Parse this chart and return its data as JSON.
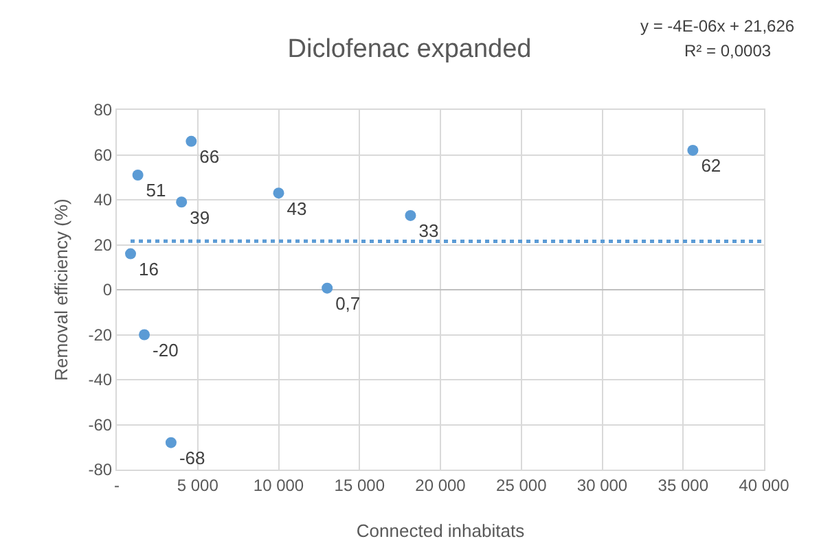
{
  "chart_data": {
    "type": "scatter",
    "title": "Diclofenac expanded",
    "xlabel": "Connected inhabitats",
    "ylabel": "Removal efficiency (%)",
    "annotations": [
      "y = -4E-06x + 21,626",
      "R² = 0,0003"
    ],
    "xlim": [
      0,
      40000
    ],
    "ylim": [
      -80,
      80
    ],
    "xticks": [
      {
        "value": 0,
        "label": "-"
      },
      {
        "value": 5000,
        "label": "5 000"
      },
      {
        "value": 10000,
        "label": "10 000"
      },
      {
        "value": 15000,
        "label": "15 000"
      },
      {
        "value": 20000,
        "label": "20 000"
      },
      {
        "value": 25000,
        "label": "25 000"
      },
      {
        "value": 30000,
        "label": "30 000"
      },
      {
        "value": 35000,
        "label": "35 000"
      },
      {
        "value": 40000,
        "label": "40 000"
      }
    ],
    "yticks": [
      -80,
      -60,
      -40,
      -20,
      0,
      20,
      40,
      60,
      80
    ],
    "grid": true,
    "marker": "circle",
    "series": [
      {
        "type": "scatter",
        "color": "#5b9bd5",
        "x": [
          4600,
          1300,
          4000,
          10000,
          850,
          13000,
          1700,
          3350,
          18150,
          35600
        ],
        "values": [
          66,
          51,
          39,
          43,
          16,
          0.7,
          -20,
          -68,
          33,
          62
        ],
        "value_labels": [
          "66",
          "51",
          "39",
          "43",
          "16",
          "0,7",
          "-20",
          "-68",
          "33",
          "62"
        ]
      },
      {
        "type": "line",
        "color": "#5b9bd5",
        "line_style": "dotted",
        "marker": "none",
        "x": [
          850,
          40000
        ],
        "values": [
          21.6,
          21.5
        ]
      }
    ]
  }
}
